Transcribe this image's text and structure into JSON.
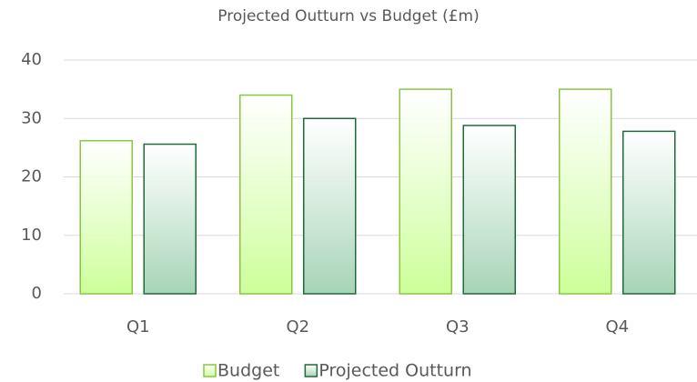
{
  "chart_data": {
    "type": "bar",
    "title": "Projected Outturn vs Budget (£m)",
    "categories": [
      "Q1",
      "Q2",
      "Q3",
      "Q4"
    ],
    "series": [
      {
        "name": "Budget",
        "color": "#ccff99",
        "edgecolor": "#8cc63f",
        "values": [
          26.2,
          34,
          35,
          35
        ]
      },
      {
        "name": "Projected Outturn",
        "color": "#a6d4b6",
        "edgecolor": "#1e6b3a",
        "values": [
          25.6,
          30,
          28.8,
          27.8
        ]
      }
    ],
    "ylim": [
      0,
      40
    ],
    "yticks": [
      0,
      10,
      20,
      30,
      40
    ],
    "grid": true,
    "legend": "bottom"
  }
}
